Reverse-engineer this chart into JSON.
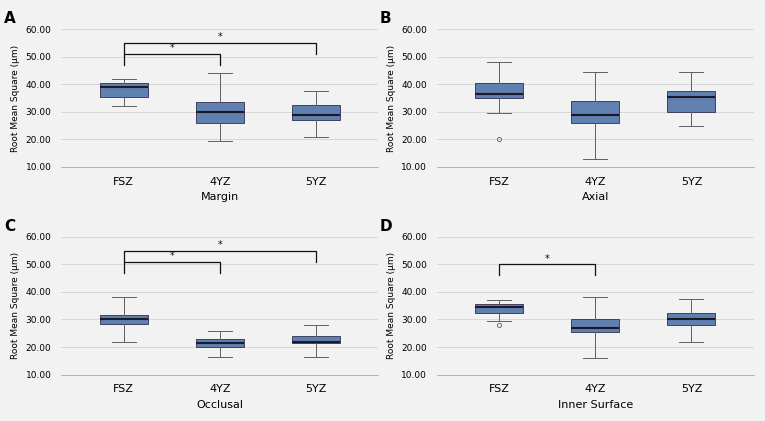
{
  "panels": [
    "A",
    "B",
    "C",
    "D"
  ],
  "xlabels": [
    "Margin",
    "Axial",
    "Occlusal",
    "Inner Surface"
  ],
  "categories": [
    "FSZ",
    "4YZ",
    "5YZ"
  ],
  "ylabel": "Root Mean Square (μm)",
  "ylim": [
    10,
    60
  ],
  "yticks": [
    10.0,
    20.0,
    30.0,
    40.0,
    50.0,
    60.0
  ],
  "box_color": "#6080b0",
  "box_edge_color": "#404060",
  "median_color": "#1a1a2a",
  "whisker_color": "#606060",
  "cap_color": "#606060",
  "flier_color": "#707070",
  "background_color": "#f2f2f2",
  "sig_line_color": "#111111",
  "panels_data": {
    "A": {
      "FSZ": {
        "q1": 35.5,
        "median": 39.0,
        "q3": 40.5,
        "whislo": 32.0,
        "whishi": 42.0
      },
      "4YZ": {
        "q1": 26.0,
        "median": 30.0,
        "q3": 33.5,
        "whislo": 19.5,
        "whishi": 44.0
      },
      "5YZ": {
        "q1": 27.0,
        "median": 29.0,
        "q3": 32.5,
        "whislo": 21.0,
        "whishi": 37.5
      }
    },
    "B": {
      "FSZ": {
        "q1": 35.0,
        "median": 36.5,
        "q3": 40.5,
        "whislo": 29.5,
        "whishi": 48.0,
        "fliers": [
          20.0
        ]
      },
      "4YZ": {
        "q1": 26.0,
        "median": 29.0,
        "q3": 34.0,
        "whislo": 13.0,
        "whishi": 44.5
      },
      "5YZ": {
        "q1": 30.0,
        "median": 35.5,
        "q3": 37.5,
        "whislo": 25.0,
        "whishi": 44.5
      }
    },
    "C": {
      "FSZ": {
        "q1": 28.5,
        "median": 30.0,
        "q3": 31.5,
        "whislo": 22.0,
        "whishi": 38.0
      },
      "4YZ": {
        "q1": 20.0,
        "median": 21.5,
        "q3": 23.0,
        "whislo": 16.5,
        "whishi": 26.0
      },
      "5YZ": {
        "q1": 21.5,
        "median": 22.0,
        "q3": 24.0,
        "whislo": 16.5,
        "whishi": 28.0
      }
    },
    "D": {
      "FSZ": {
        "q1": 32.5,
        "median": 34.5,
        "q3": 35.5,
        "whislo": 29.5,
        "whishi": 37.0,
        "fliers": [
          28.0
        ]
      },
      "4YZ": {
        "q1": 25.5,
        "median": 27.0,
        "q3": 30.0,
        "whislo": 16.0,
        "whishi": 38.0
      },
      "5YZ": {
        "q1": 28.0,
        "median": 30.0,
        "q3": 32.5,
        "whislo": 22.0,
        "whishi": 37.5
      }
    }
  },
  "sig_brackets": {
    "A": [
      [
        "FSZ",
        "4YZ",
        47,
        51
      ],
      [
        "FSZ",
        "5YZ",
        51,
        55
      ]
    ],
    "B": [],
    "C": [
      [
        "FSZ",
        "4YZ",
        47,
        51
      ],
      [
        "FSZ",
        "5YZ",
        51,
        55
      ]
    ],
    "D": [
      [
        "FSZ",
        "4YZ",
        46,
        50
      ]
    ]
  }
}
